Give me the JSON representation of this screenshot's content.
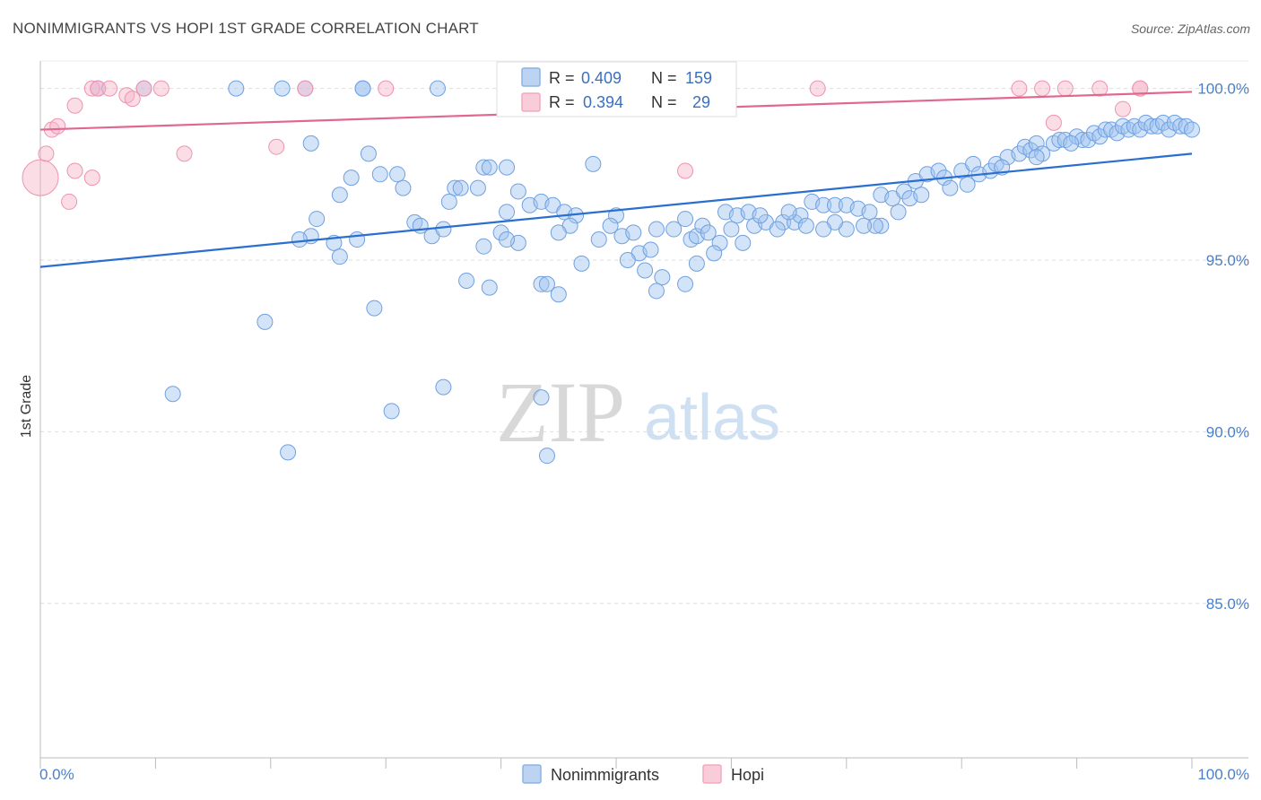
{
  "chart_data": {
    "type": "scatter",
    "title": "NONIMMIGRANTS VS HOPI 1ST GRADE CORRELATION CHART",
    "source": "Source: ZipAtlas.com",
    "xlabel": "",
    "ylabel": "1st Grade",
    "xlim": [
      0,
      100
    ],
    "ylim": [
      80.5,
      100.8
    ],
    "x_tick_labels": [
      "0.0%",
      "100.0%"
    ],
    "y_ticks": [
      100,
      95,
      90,
      85
    ],
    "y_tick_labels": [
      "100.0%",
      "95.0%",
      "90.0%",
      "85.0%"
    ],
    "grid": true,
    "watermark": {
      "zip": "ZIP",
      "atlas": "atlas"
    },
    "legend": {
      "position": "top-center",
      "entries": [
        {
          "r_label": "R =",
          "r_value": "0.409",
          "n_label": "N =",
          "n_value": "159"
        },
        {
          "r_label": "R =",
          "r_value": "0.394",
          "n_label": "N =",
          "n_value": "29"
        }
      ]
    },
    "series": [
      {
        "name": "Nonimmigrants",
        "color": "#8ab4e8",
        "line_color": "#2a6fd0",
        "trend": {
          "x": [
            0,
            100
          ],
          "y": [
            94.8,
            98.1
          ]
        },
        "points": [
          [
            5,
            100
          ],
          [
            9,
            100
          ],
          [
            17,
            100
          ],
          [
            21,
            100
          ],
          [
            23,
            100
          ],
          [
            28,
            100
          ],
          [
            28,
            100
          ],
          [
            34.5,
            100
          ],
          [
            23.5,
            98.4
          ],
          [
            28.5,
            98.1
          ],
          [
            29.5,
            97.5
          ],
          [
            31,
            97.5
          ],
          [
            26,
            96.9
          ],
          [
            27,
            97.4
          ],
          [
            31.5,
            97.1
          ],
          [
            36,
            97.1
          ],
          [
            36.5,
            97.1
          ],
          [
            38,
            97.1
          ],
          [
            35.5,
            96.7
          ],
          [
            38.5,
            97.7
          ],
          [
            39,
            97.7
          ],
          [
            41.5,
            97
          ],
          [
            24,
            96.2
          ],
          [
            32.5,
            96.1
          ],
          [
            33,
            96
          ],
          [
            34,
            95.7
          ],
          [
            35,
            95.9
          ],
          [
            23.5,
            95.7
          ],
          [
            22.5,
            95.6
          ],
          [
            25.5,
            95.5
          ],
          [
            26,
            95.1
          ],
          [
            40.5,
            96.4
          ],
          [
            42.5,
            96.6
          ],
          [
            43.5,
            96.7
          ],
          [
            44.5,
            96.6
          ],
          [
            45.5,
            96.4
          ],
          [
            46.5,
            96.3
          ],
          [
            48,
            97.8
          ],
          [
            50,
            96.3
          ],
          [
            40,
            95.8
          ],
          [
            41.5,
            95.5
          ],
          [
            40.5,
            95.6
          ],
          [
            38.5,
            95.4
          ],
          [
            46,
            96
          ],
          [
            45,
            95.8
          ],
          [
            48.5,
            95.6
          ],
          [
            49.5,
            96
          ],
          [
            50.5,
            95.7
          ],
          [
            51.5,
            95.8
          ],
          [
            53.5,
            95.9
          ],
          [
            52,
            95.2
          ],
          [
            51,
            95
          ],
          [
            52.5,
            94.7
          ],
          [
            53,
            95.3
          ],
          [
            55,
            95.9
          ],
          [
            56.5,
            95.6
          ],
          [
            56,
            96.2
          ],
          [
            57,
            95.7
          ],
          [
            57.5,
            96
          ],
          [
            58,
            95.8
          ],
          [
            59,
            95.5
          ],
          [
            59.5,
            96.4
          ],
          [
            60.5,
            96.3
          ],
          [
            61.5,
            96.4
          ],
          [
            62,
            96
          ],
          [
            63,
            96.1
          ],
          [
            64.5,
            96.1
          ],
          [
            65.5,
            96.1
          ],
          [
            66,
            96.3
          ],
          [
            67,
            96.7
          ],
          [
            68,
            96.6
          ],
          [
            69,
            96.6
          ],
          [
            70,
            96.6
          ],
          [
            71,
            96.5
          ],
          [
            72,
            96.4
          ],
          [
            73,
            96.9
          ],
          [
            74,
            96.8
          ],
          [
            75,
            97
          ],
          [
            75.5,
            96.8
          ],
          [
            76,
            97.3
          ],
          [
            77,
            97.5
          ],
          [
            78,
            97.6
          ],
          [
            78.5,
            97.4
          ],
          [
            79,
            97.1
          ],
          [
            80,
            97.6
          ],
          [
            81,
            97.8
          ],
          [
            81.5,
            97.5
          ],
          [
            82.5,
            97.6
          ],
          [
            83,
            97.8
          ],
          [
            84,
            98
          ],
          [
            85,
            98.1
          ],
          [
            85.5,
            98.3
          ],
          [
            86,
            98.2
          ],
          [
            86.5,
            98.4
          ],
          [
            87,
            98.1
          ],
          [
            88,
            98.4
          ],
          [
            88.5,
            98.5
          ],
          [
            89,
            98.5
          ],
          [
            90,
            98.6
          ],
          [
            90.5,
            98.5
          ],
          [
            91,
            98.5
          ],
          [
            91.5,
            98.7
          ],
          [
            92,
            98.6
          ],
          [
            92.5,
            98.8
          ],
          [
            93,
            98.8
          ],
          [
            93.5,
            98.7
          ],
          [
            94,
            98.9
          ],
          [
            94.5,
            98.8
          ],
          [
            95,
            98.9
          ],
          [
            95.5,
            98.8
          ],
          [
            96,
            99
          ],
          [
            96.5,
            98.9
          ],
          [
            97,
            98.9
          ],
          [
            97.5,
            99
          ],
          [
            98,
            98.8
          ],
          [
            98.5,
            99
          ],
          [
            99,
            98.9
          ],
          [
            99.5,
            98.9
          ],
          [
            100,
            98.8
          ],
          [
            73,
            96
          ],
          [
            74.5,
            96.4
          ],
          [
            76.5,
            96.9
          ],
          [
            72.5,
            96
          ],
          [
            71.5,
            96
          ],
          [
            70,
            95.9
          ],
          [
            69,
            96.1
          ],
          [
            68,
            95.9
          ],
          [
            66.5,
            96
          ],
          [
            65,
            96.4
          ],
          [
            64,
            95.9
          ],
          [
            62.5,
            96.3
          ],
          [
            61,
            95.5
          ],
          [
            60,
            95.9
          ],
          [
            58.5,
            95.2
          ],
          [
            57,
            94.9
          ],
          [
            56,
            94.3
          ],
          [
            54,
            94.5
          ],
          [
            53.5,
            94.1
          ],
          [
            47,
            94.9
          ],
          [
            45,
            94
          ],
          [
            43.5,
            94.3
          ],
          [
            44,
            94.3
          ],
          [
            39,
            94.2
          ],
          [
            37,
            94.4
          ],
          [
            29,
            93.6
          ],
          [
            19.5,
            93.2
          ],
          [
            11.5,
            91.1
          ],
          [
            35,
            91.3
          ],
          [
            43.5,
            91
          ],
          [
            30.5,
            90.6
          ],
          [
            21.5,
            89.4
          ],
          [
            44,
            89.3
          ],
          [
            27.5,
            95.6
          ],
          [
            40.5,
            97.7
          ],
          [
            80.5,
            97.2
          ],
          [
            83.5,
            97.7
          ],
          [
            86.5,
            98
          ],
          [
            89.5,
            98.4
          ]
        ]
      },
      {
        "name": "Hopi",
        "color": "#f4a8bf",
        "line_color": "#e06890",
        "trend": {
          "x": [
            0,
            100
          ],
          "y": [
            98.8,
            99.9
          ]
        },
        "points": [
          [
            0,
            97.4
          ],
          [
            1,
            98.8
          ],
          [
            1.5,
            98.9
          ],
          [
            0.5,
            98.1
          ],
          [
            2.5,
            96.7
          ],
          [
            3,
            97.6
          ],
          [
            3,
            99.5
          ],
          [
            4.5,
            100
          ],
          [
            4.5,
            97.4
          ],
          [
            5,
            100
          ],
          [
            6,
            100
          ],
          [
            7.5,
            99.8
          ],
          [
            8,
            99.7
          ],
          [
            9,
            100
          ],
          [
            10.5,
            100
          ],
          [
            12.5,
            98.1
          ],
          [
            20.5,
            98.3
          ],
          [
            23,
            100
          ],
          [
            30,
            100
          ],
          [
            56,
            97.6
          ],
          [
            67.5,
            100
          ],
          [
            85,
            100
          ],
          [
            87,
            100
          ],
          [
            89,
            100
          ],
          [
            92,
            100
          ],
          [
            95.5,
            100
          ],
          [
            94,
            99.4
          ],
          [
            88,
            99
          ],
          [
            95.5,
            100
          ]
        ]
      }
    ]
  }
}
